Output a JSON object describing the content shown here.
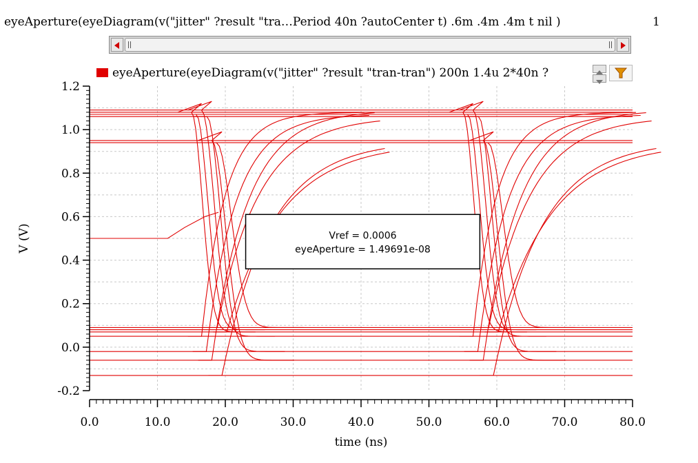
{
  "expression_bar": {
    "text": "eyeAperture(eyeDiagram(v(\"jitter\" ?result \"tra…Period 40n ?autoCenter t)  .6m .4m .4m t nil )",
    "page_number": "1"
  },
  "legend": {
    "label": "eyeAperture(eyeDiagram(v(\"jitter\" ?result \"tran-tran\") 200n 1.4u 2*40n ?",
    "color": "#e00000"
  },
  "annotation": {
    "line1": "Vref = 0.0006",
    "line2": "eyeAperture = 1.49691e-08"
  },
  "colors": {
    "trace": "#e00000",
    "grid": "#c8c8c8",
    "background": "#ffffff"
  },
  "icons": [
    "left-arrow-icon",
    "right-arrow-icon",
    "spin-up-icon",
    "spin-down-icon",
    "filter-funnel-icon"
  ],
  "chart_data": {
    "type": "line",
    "title": "",
    "xlabel": "time (ns)",
    "ylabel": "V (V)",
    "xlim": [
      0,
      80
    ],
    "ylim": [
      -0.2,
      1.2
    ],
    "xticks": [
      "0.0",
      "10.0",
      "20.0",
      "30.0",
      "40.0",
      "50.0",
      "60.0",
      "70.0",
      "80.0"
    ],
    "yticks": [
      "1.2",
      "1.0",
      "0.8",
      "0.6",
      "0.4",
      "0.2",
      "0.0",
      "-0.2"
    ],
    "grid": true,
    "legend_position": "top",
    "series": [
      {
        "name": "eyeAperture(eyeDiagram(v(\"jitter\" ?result \"tran-tran\") 200n 1.4u 2*40n ?",
        "kind": "eye-diagram",
        "high_levels": [
          1.08,
          1.07,
          1.09,
          1.06,
          0.95,
          0.94
        ],
        "low_levels": [
          0.07,
          0.08,
          0.05,
          -0.02,
          -0.06,
          0.09,
          -0.13
        ],
        "crossing_times": [
          19.5,
          59.5
        ],
        "eye_window": {
          "t_start": 23,
          "t_end": 57.5,
          "v_low": 0.36,
          "v_high": 0.61
        }
      }
    ]
  }
}
